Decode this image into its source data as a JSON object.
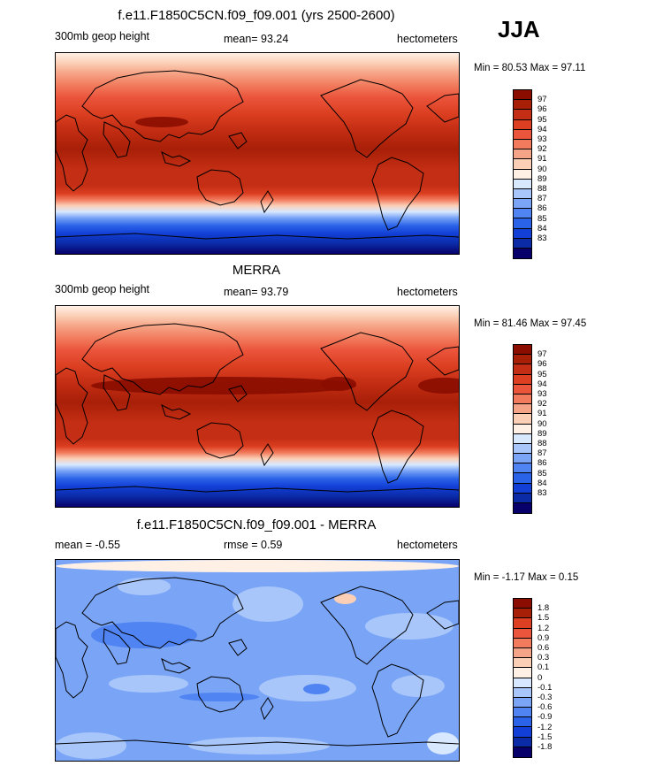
{
  "season": "JJA",
  "colors": {
    "abs": [
      "#08006a",
      "#0a2aa6",
      "#123fd6",
      "#2a62e8",
      "#4f84f2",
      "#7aa5f6",
      "#a8c6fa",
      "#d8e8ff",
      "#fff0e6",
      "#fbcfb6",
      "#f6a487",
      "#f27b5d",
      "#eb553c",
      "#dc3f21",
      "#c42e14",
      "#a81f08",
      "#8a0d00"
    ],
    "diff": [
      "#08006a",
      "#0a2aa6",
      "#123fd6",
      "#2a62e8",
      "#4f84f2",
      "#7aa5f6",
      "#a8c6fa",
      "#d8e8ff",
      "#fff0e6",
      "#fbcfb6",
      "#f6a487",
      "#f27b5d",
      "#eb553c",
      "#dc3f21",
      "#a81f08",
      "#8a0d00"
    ]
  },
  "panels": [
    {
      "title": "f.e11.F1850C5CN.f09_f09.001 (yrs 2500-2600)",
      "left_label": "300mb geop height",
      "center_label": "mean=  93.24",
      "right_label": "hectometers",
      "minmax": "Min =  80.53 Max =  97.11",
      "cb_labels": [
        "97",
        "96",
        "95",
        "94",
        "93",
        "92",
        "91",
        "90",
        "89",
        "88",
        "87",
        "86",
        "85",
        "84",
        "83"
      ]
    },
    {
      "title": "MERRA",
      "left_label": "300mb geop height",
      "center_label": "mean=  93.79",
      "right_label": "hectometers",
      "minmax": "Min =  81.46 Max =  97.45",
      "cb_labels": [
        "97",
        "96",
        "95",
        "94",
        "93",
        "92",
        "91",
        "90",
        "89",
        "88",
        "87",
        "86",
        "85",
        "84",
        "83"
      ]
    },
    {
      "title": "f.e11.F1850C5CN.f09_f09.001 - MERRA",
      "left_label": "mean =  -0.55",
      "center_label": "rmse =   0.59",
      "right_label": "hectometers",
      "minmax": "Min =  -1.17 Max =   0.15",
      "cb_labels": [
        "1.8",
        "1.5",
        "1.2",
        "0.9",
        "0.6",
        "0.3",
        "0.1",
        "0",
        "-0.1",
        "-0.3",
        "-0.6",
        "-0.9",
        "-1.2",
        "-1.5",
        "-1.8"
      ]
    }
  ],
  "chart_data": [
    {
      "type": "heatmap",
      "title": "f.e11.F1850C5CN.f09_f09.001 (yrs 2500-2600)",
      "variable": "300mb geop height",
      "units": "hectometers",
      "mean": 93.24,
      "min": 80.53,
      "max": 97.11,
      "contour_levels": [
        83,
        84,
        85,
        86,
        87,
        88,
        89,
        90,
        91,
        92,
        93,
        94,
        95,
        96,
        97
      ]
    },
    {
      "type": "heatmap",
      "title": "MERRA",
      "variable": "300mb geop height",
      "units": "hectometers",
      "mean": 93.79,
      "min": 81.46,
      "max": 97.45,
      "contour_levels": [
        83,
        84,
        85,
        86,
        87,
        88,
        89,
        90,
        91,
        92,
        93,
        94,
        95,
        96,
        97
      ]
    },
    {
      "type": "heatmap",
      "title": "f.e11.F1850C5CN.f09_f09.001 - MERRA",
      "units": "hectometers",
      "mean": -0.55,
      "rmse": 0.59,
      "min": -1.17,
      "max": 0.15,
      "contour_levels": [
        -1.8,
        -1.5,
        -1.2,
        -0.9,
        -0.6,
        -0.3,
        -0.1,
        0,
        0.1,
        0.3,
        0.6,
        0.9,
        1.2,
        1.5,
        1.8
      ]
    }
  ]
}
